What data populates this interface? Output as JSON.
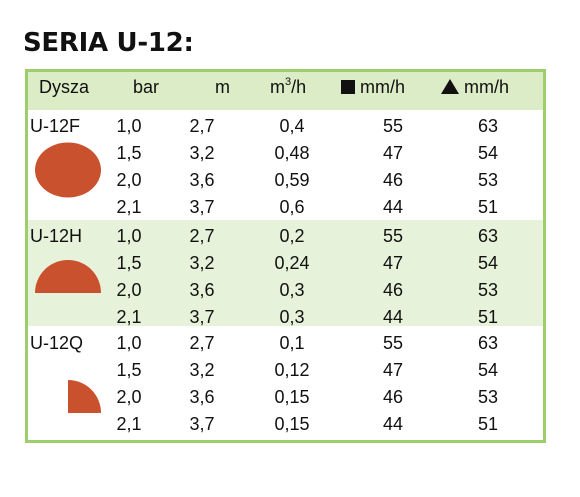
{
  "title": "SERIA U-12:",
  "colors": {
    "border": "#9ccf6b",
    "header_bg": "#dbecc7",
    "band_bg": "#e7f2da",
    "shape": "#c9512d"
  },
  "headers": {
    "nozzle": "Dysza",
    "bar": "bar",
    "m": "m",
    "flow_unit": "m",
    "flow_sup": "3",
    "flow_suffix": "/h",
    "square_icon": "filled-square-icon",
    "square_rate": "mm/h",
    "triangle_icon": "filled-triangle-icon",
    "triangle_rate": "mm/h"
  },
  "groups": [
    {
      "nozzle": "U-12F",
      "shape": "full-circle-icon",
      "rows": [
        {
          "bar": "1,0",
          "m": "2,7",
          "flow": "0,4",
          "sq": "55",
          "tri": "63"
        },
        {
          "bar": "1,5",
          "m": "3,2",
          "flow": "0,48",
          "sq": "47",
          "tri": "54"
        },
        {
          "bar": "2,0",
          "m": "3,6",
          "flow": "0,59",
          "sq": "46",
          "tri": "53"
        },
        {
          "bar": "2,1",
          "m": "3,7",
          "flow": "0,6",
          "sq": "44",
          "tri": "51"
        }
      ]
    },
    {
      "nozzle": "U-12H",
      "shape": "half-circle-icon",
      "rows": [
        {
          "bar": "1,0",
          "m": "2,7",
          "flow": "0,2",
          "sq": "55",
          "tri": "63"
        },
        {
          "bar": "1,5",
          "m": "3,2",
          "flow": "0,24",
          "sq": "47",
          "tri": "54"
        },
        {
          "bar": "2,0",
          "m": "3,6",
          "flow": "0,3",
          "sq": "46",
          "tri": "53"
        },
        {
          "bar": "2,1",
          "m": "3,7",
          "flow": "0,3",
          "sq": "44",
          "tri": "51"
        }
      ]
    },
    {
      "nozzle": "U-12Q",
      "shape": "quarter-circle-icon",
      "rows": [
        {
          "bar": "1,0",
          "m": "2,7",
          "flow": "0,1",
          "sq": "55",
          "tri": "63"
        },
        {
          "bar": "1,5",
          "m": "3,2",
          "flow": "0,12",
          "sq": "47",
          "tri": "54"
        },
        {
          "bar": "2,0",
          "m": "3,6",
          "flow": "0,15",
          "sq": "46",
          "tri": "53"
        },
        {
          "bar": "2,1",
          "m": "3,7",
          "flow": "0,15",
          "sq": "44",
          "tri": "51"
        }
      ]
    }
  ]
}
